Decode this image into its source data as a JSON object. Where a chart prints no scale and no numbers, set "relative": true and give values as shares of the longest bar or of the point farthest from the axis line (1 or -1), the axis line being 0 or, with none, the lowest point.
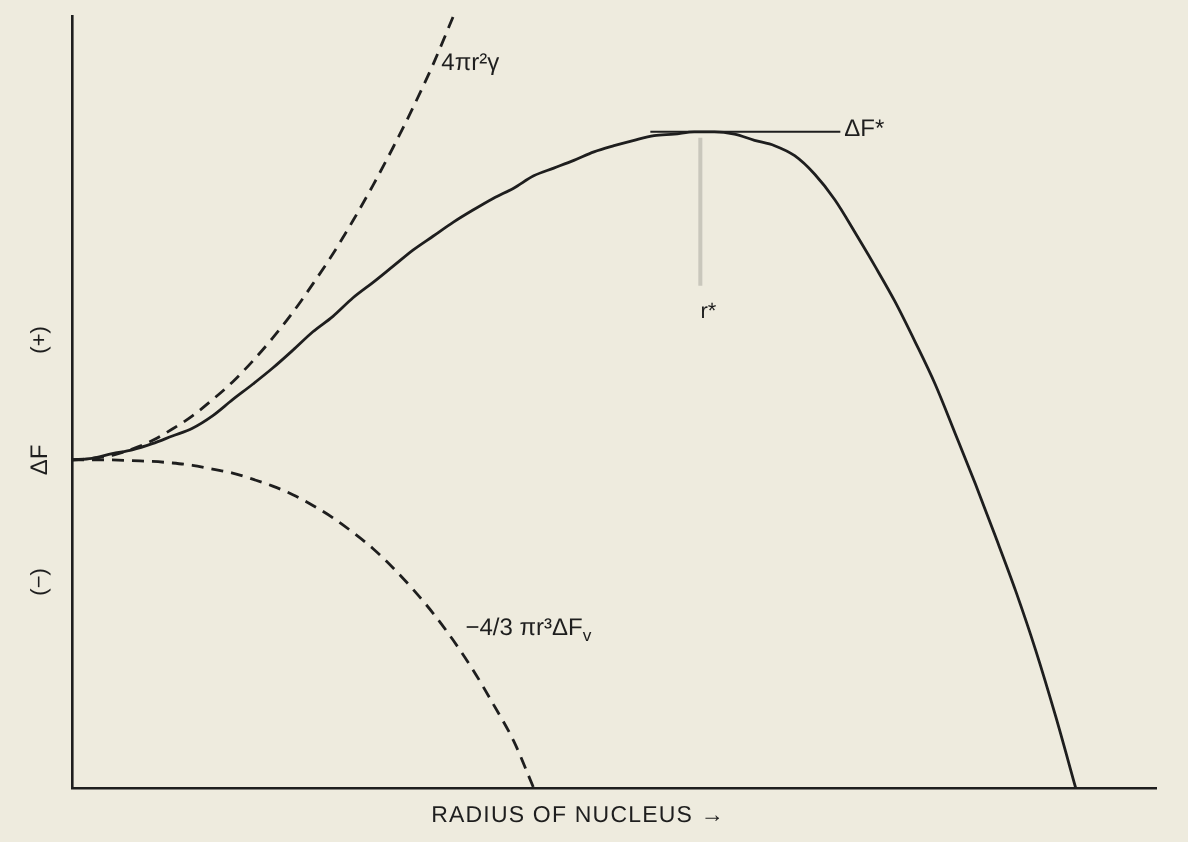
{
  "chart_data": {
    "type": "line",
    "xlabel": "RADIUS OF NUCLEUS →",
    "ylabel": "ΔF",
    "relative": true,
    "marker": "none",
    "ref_lines": [
      {
        "axis": "y",
        "value": 0.85,
        "label": "ΔF*",
        "color": "#1e1e1e",
        "line_style": "solid"
      }
    ],
    "annotations": [
      "r*",
      "(+)",
      "(−)"
    ],
    "categories": [
      null,
      null,
      null,
      null,
      null,
      null,
      null,
      null,
      null,
      null,
      null,
      null,
      null,
      null,
      null,
      null,
      null,
      null,
      null,
      null,
      null,
      null,
      null,
      null,
      null,
      null,
      null,
      null,
      null,
      null,
      null,
      null,
      null,
      null,
      null,
      null,
      null,
      null,
      null,
      null,
      null,
      null,
      null,
      null,
      null,
      null,
      null,
      null,
      null,
      null,
      null,
      null,
      null,
      null,
      null
    ],
    "series": [
      {
        "name": "4πr²γ",
        "color": "#1e1e1e",
        "line_style": "dashed",
        "values": [
          0.425,
          0.427,
          0.431,
          0.439,
          0.45,
          0.465,
          0.482,
          0.503,
          0.526,
          0.553,
          0.583,
          0.616,
          0.653,
          0.692,
          0.735,
          0.781,
          0.83,
          0.882,
          0.938,
          1,
          null,
          null,
          null,
          null,
          null,
          null,
          null,
          null,
          null,
          null,
          null,
          null,
          null,
          null,
          null,
          null,
          null,
          null,
          null,
          null,
          null,
          null,
          null,
          null,
          null,
          null,
          null,
          null,
          null,
          null,
          null,
          null,
          null,
          null,
          null
        ]
      },
      {
        "name": "−4/3 πr³ΔF$_{v}$",
        "color": "#1e1e1e",
        "line_style": "dashed",
        "values": [
          0.425,
          0.425,
          0.425,
          0.424,
          0.423,
          0.421,
          0.418,
          0.413,
          0.408,
          0.4,
          0.391,
          0.38,
          0.366,
          0.35,
          0.331,
          0.31,
          0.285,
          0.257,
          0.226,
          0.191,
          0.152,
          0.108,
          0.061,
          0,
          null,
          null,
          null,
          null,
          null,
          null,
          null,
          null,
          null,
          null,
          null,
          null,
          null,
          null,
          null,
          null,
          null,
          null,
          null,
          null,
          null,
          null,
          null,
          null,
          null,
          null,
          null,
          null,
          null,
          null,
          null
        ]
      },
      {
        "color": "#1e1e1e",
        "line_style": "solid",
        "values": [
          0.425,
          0.427,
          0.433,
          0.438,
          0.446,
          0.456,
          0.466,
          0.482,
          0.503,
          0.523,
          0.544,
          0.567,
          0.591,
          0.611,
          0.635,
          0.655,
          0.676,
          0.697,
          0.715,
          0.733,
          0.749,
          0.764,
          0.777,
          0.793,
          0.803,
          0.813,
          0.824,
          0.832,
          0.839,
          0.845,
          0.847,
          0.85,
          0.85,
          0.847,
          0.839,
          0.832,
          0.819,
          0.795,
          0.762,
          0.72,
          0.676,
          0.63,
          0.578,
          0.523,
          0.459,
          0.394,
          0.326,
          0.256,
          0.179,
          0.093,
          0,
          null,
          null,
          null,
          null
        ]
      }
    ]
  }
}
